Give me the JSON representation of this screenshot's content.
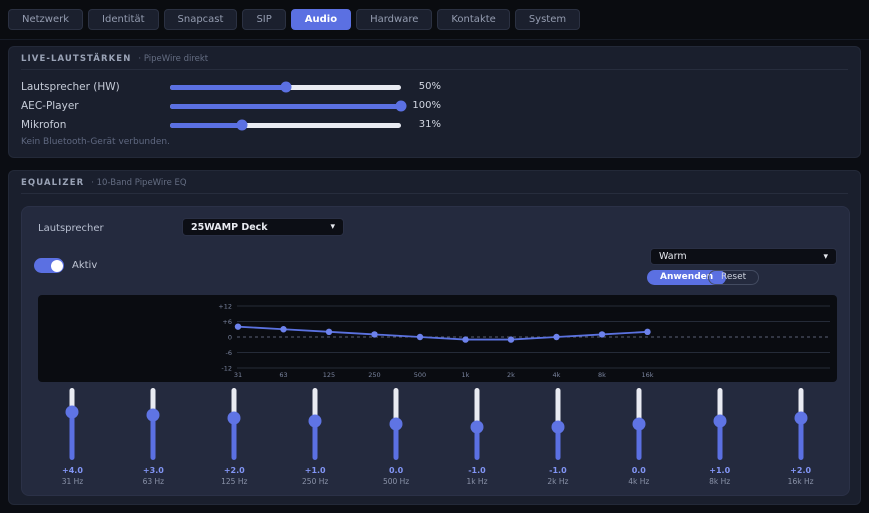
{
  "tabs": [
    {
      "label": "Netzwerk",
      "active": false
    },
    {
      "label": "Identität",
      "active": false
    },
    {
      "label": "Snapcast",
      "active": false
    },
    {
      "label": "SIP",
      "active": false
    },
    {
      "label": "Audio",
      "active": true
    },
    {
      "label": "Hardware",
      "active": false
    },
    {
      "label": "Kontakte",
      "active": false
    },
    {
      "label": "System",
      "active": false
    }
  ],
  "live_volumes": {
    "title": "LIVE-LAUTSTÄRKEN",
    "subtitle": "· PipeWire direkt",
    "sliders": [
      {
        "label": "Lautsprecher (HW)",
        "percent": 50,
        "value_label": "50%"
      },
      {
        "label": "AEC-Player",
        "percent": 100,
        "value_label": "100%"
      },
      {
        "label": "Mikrofon",
        "percent": 31,
        "value_label": "31%"
      }
    ],
    "note": "Kein Bluetooth-Gerät verbunden."
  },
  "equalizer": {
    "title": "EQUALIZER",
    "subtitle": "· 10-Band PipeWire EQ",
    "output_label": "Lautsprecher",
    "output_selected": "25WAMP Deck",
    "active_label": "Aktiv",
    "preset_selected": "Warm",
    "apply_label": "Anwenden",
    "reset_label": "Reset",
    "bands": [
      {
        "freq": "31 Hz",
        "gain": 4,
        "gain_label": "+4.0"
      },
      {
        "freq": "63 Hz",
        "gain": 3,
        "gain_label": "+3.0"
      },
      {
        "freq": "125 Hz",
        "gain": 2,
        "gain_label": "+2.0"
      },
      {
        "freq": "250 Hz",
        "gain": 1,
        "gain_label": "+1.0"
      },
      {
        "freq": "500 Hz",
        "gain": 0,
        "gain_label": "0.0"
      },
      {
        "freq": "1k Hz",
        "gain": -1,
        "gain_label": "-1.0"
      },
      {
        "freq": "2k Hz",
        "gain": -1,
        "gain_label": "-1.0"
      },
      {
        "freq": "4k Hz",
        "gain": 0,
        "gain_label": "0.0"
      },
      {
        "freq": "8k Hz",
        "gain": 1,
        "gain_label": "+1.0"
      },
      {
        "freq": "16k Hz",
        "gain": 2,
        "gain_label": "+2.0"
      }
    ]
  },
  "chart_data": {
    "type": "line",
    "title": "",
    "x_labels": [
      "31",
      "63",
      "125",
      "250",
      "500",
      "1k",
      "2k",
      "4k",
      "8k",
      "16k"
    ],
    "values": [
      4,
      3,
      2,
      1,
      0,
      -1,
      -1,
      0,
      1,
      2
    ],
    "y_ticks": [
      12,
      6,
      0,
      -6,
      -12
    ],
    "y_tick_labels": [
      "+12",
      "+6",
      "0",
      "-6",
      "-12"
    ],
    "ylim": [
      -12,
      12
    ],
    "grid": true,
    "zero_line_dashed": true,
    "line_color": "#5b72e0",
    "point_color": "#6d82ec"
  },
  "colors": {
    "accent": "#5b70e2",
    "card_bg": "#1a1f2d",
    "panel_bg": "#242a3e",
    "chart_bg": "#0a0c11",
    "track_light": "#e9ebf2",
    "page_bg": "#0b0d13"
  }
}
